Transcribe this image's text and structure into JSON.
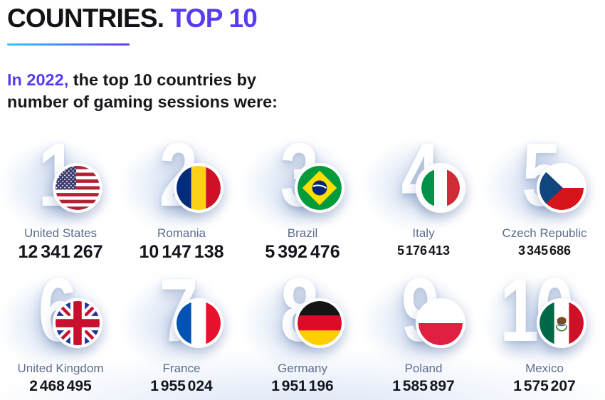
{
  "header": {
    "title": "COUNTRIES.",
    "title_accent": "TOP 10"
  },
  "intro": {
    "accent": "In 2022,",
    "text": "the top 10 countries by number of gaming sessions were:"
  },
  "colors": {
    "accent_purple": "#5b3bf0",
    "underline_gradient_start": "#35c8f5",
    "underline_gradient_end": "#6d3bf7",
    "country_name_text": "#5d6c8b",
    "sessions_value_text": "#15161d",
    "rank_numeral": "#ffffff"
  },
  "countries": [
    {
      "rank": "1",
      "name": "United States",
      "sessions": "12 341 267",
      "flag_icon": "us-flag-icon",
      "emphasis": "lg"
    },
    {
      "rank": "2",
      "name": "Romania",
      "sessions": "10 147 138",
      "flag_icon": "romania-flag-icon",
      "emphasis": "lg"
    },
    {
      "rank": "3",
      "name": "Brazil",
      "sessions": "5 392 476",
      "flag_icon": "brazil-flag-icon",
      "emphasis": "lg"
    },
    {
      "rank": "4",
      "name": "Italy",
      "sessions": "5 176 413",
      "flag_icon": "italy-flag-icon",
      "emphasis": "sm"
    },
    {
      "rank": "5",
      "name": "Czech Republic",
      "sessions": "3 345 686",
      "flag_icon": "czech-republic-flag-icon",
      "emphasis": "sm"
    },
    {
      "rank": "6",
      "name": "United Kingdom",
      "sessions": "2 468 495",
      "flag_icon": "united-kingdom-flag-icon",
      "emphasis": "md"
    },
    {
      "rank": "7",
      "name": "France",
      "sessions": "1 955 024",
      "flag_icon": "france-flag-icon",
      "emphasis": "md"
    },
    {
      "rank": "8",
      "name": "Germany",
      "sessions": "1 951 196",
      "flag_icon": "germany-flag-icon",
      "emphasis": "md"
    },
    {
      "rank": "9",
      "name": "Poland",
      "sessions": "1 585 897",
      "flag_icon": "poland-flag-icon",
      "emphasis": "md"
    },
    {
      "rank": "10",
      "name": "Mexico",
      "sessions": "1 575 207",
      "flag_icon": "mexico-flag-icon",
      "emphasis": "md"
    }
  ],
  "chart_data": {
    "type": "table",
    "title": "Countries. Top 10 — number of gaming sessions in 2022",
    "categories": [
      "United States",
      "Romania",
      "Brazil",
      "Italy",
      "Czech Republic",
      "United Kingdom",
      "France",
      "Germany",
      "Poland",
      "Mexico"
    ],
    "values": [
      12341267,
      10147138,
      5392476,
      5176413,
      3345686,
      2468495,
      1955024,
      1951196,
      1585897,
      1575207
    ]
  }
}
